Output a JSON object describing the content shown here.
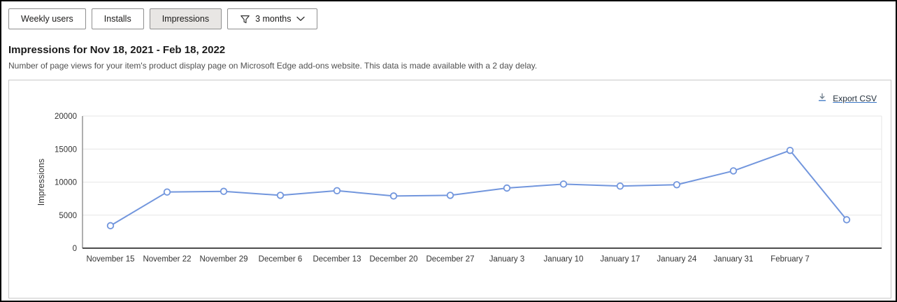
{
  "toolbar": {
    "buttons": [
      {
        "label": "Weekly users",
        "selected": false
      },
      {
        "label": "Installs",
        "selected": false
      },
      {
        "label": "Impressions",
        "selected": true
      }
    ],
    "filter": {
      "label": "3 months",
      "icons": [
        "filter-funnel-icon",
        "chevron-down-icon"
      ]
    }
  },
  "header": {
    "title": "Impressions for Nov 18, 2021 - Feb 18, 2022",
    "subtitle": "Number of page views for your item's product display page on Microsoft Edge add-ons website. This data is made available with a 2 day delay."
  },
  "panel": {
    "export_label": "Export CSV",
    "export_icon": "download-icon"
  },
  "colors": {
    "line": "#7296dd",
    "marker_fill": "#ffffff",
    "gridline": "#e6e6e6",
    "axis_left": "#7a7a7a",
    "axis_bottom": "#4d4d4d",
    "tick_text": "#333333",
    "link_underline": "#3a76c4"
  },
  "chart_data": {
    "type": "line",
    "title": "",
    "xlabel": "",
    "ylabel": "Impressions",
    "ylim": [
      0,
      20000
    ],
    "yticks": [
      0,
      5000,
      10000,
      15000,
      20000
    ],
    "grid": true,
    "legend": "none",
    "marker": "circle-open",
    "categories": [
      "November 15",
      "November 22",
      "November 29",
      "December 6",
      "December 13",
      "December 20",
      "December 27",
      "January 3",
      "January 10",
      "January 17",
      "January 24",
      "January 31",
      "February 7",
      ""
    ],
    "values": [
      3400,
      8500,
      8600,
      8000,
      8700,
      7900,
      8000,
      9100,
      9700,
      9400,
      9600,
      11700,
      14800,
      4300
    ]
  }
}
